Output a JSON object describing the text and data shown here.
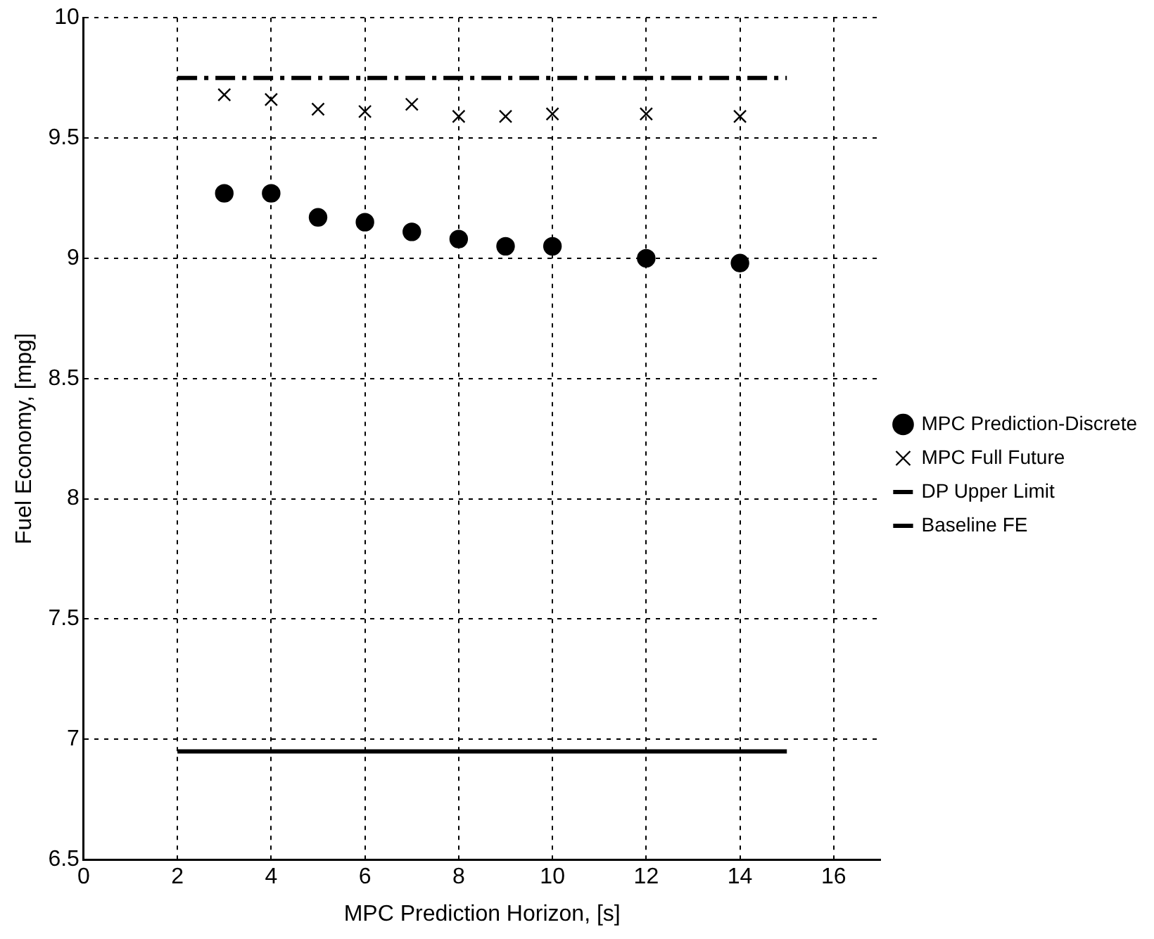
{
  "chart_data": {
    "type": "scatter",
    "xlabel": "MPC Prediction Horizon, [s]",
    "ylabel": "Fuel Economy, [mpg]",
    "xlim": [
      0,
      17
    ],
    "xticks": [
      0,
      2,
      4,
      6,
      8,
      10,
      12,
      14,
      16
    ],
    "ylim": [
      6.5,
      10
    ],
    "yticks": [
      6.5,
      7,
      7.5,
      8,
      8.5,
      9,
      9.5,
      10
    ],
    "grid": true,
    "legend": "right",
    "series": [
      {
        "name": "MPC Prediction-Discrete",
        "type": "scatter",
        "marker": "circle",
        "color": "#000000",
        "x": [
          3,
          4,
          5,
          6,
          7,
          8,
          9,
          10,
          12,
          14
        ],
        "values": [
          9.27,
          9.27,
          9.17,
          9.15,
          9.11,
          9.08,
          9.05,
          9.05,
          9.0,
          8.98
        ]
      },
      {
        "name": "MPC Full Future",
        "type": "scatter",
        "marker": "cross",
        "color": "#000000",
        "x": [
          3,
          4,
          5,
          6,
          7,
          8,
          9,
          10,
          12,
          14
        ],
        "values": [
          9.68,
          9.66,
          9.62,
          9.61,
          9.64,
          9.59,
          9.59,
          9.6,
          9.6,
          9.59
        ]
      },
      {
        "name": "DP Upper Limit",
        "type": "line",
        "line_style": "dashdot",
        "marker": "none",
        "color": "#000000",
        "x": [
          2,
          15
        ],
        "values": [
          9.75,
          9.75
        ]
      },
      {
        "name": "Baseline FE",
        "type": "line",
        "line_style": "solid",
        "marker": "none",
        "color": "#000000",
        "x": [
          2,
          15
        ],
        "values": [
          6.95,
          6.95
        ]
      }
    ]
  }
}
